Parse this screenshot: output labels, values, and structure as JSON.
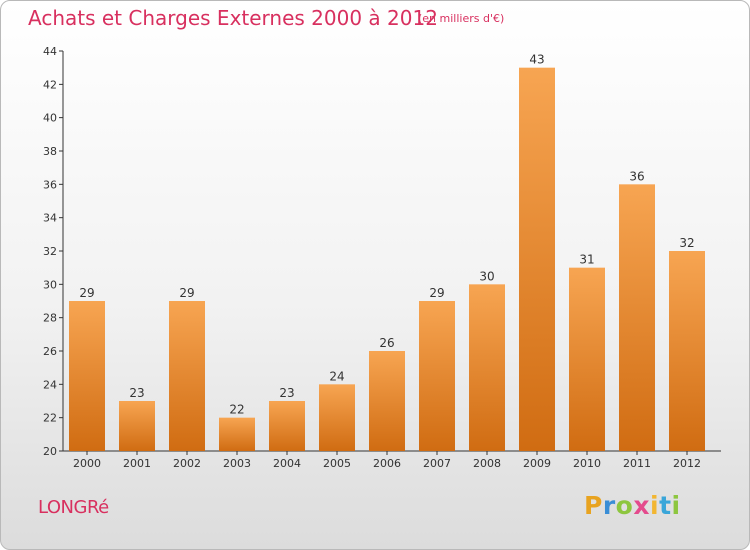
{
  "header": {
    "title": "Achats et Charges Externes 2000 à 2012",
    "subtitle": "(en milliers d'€)"
  },
  "footer": {
    "town": "LONGRé",
    "logo": {
      "letters": [
        "P",
        "r",
        "o",
        "x",
        "i",
        "t",
        "i"
      ],
      "colors": [
        "#e8a320",
        "#3a8ed6",
        "#8dc63f",
        "#e44b8d",
        "#f2b631",
        "#3aa6d9",
        "#8dc63f"
      ]
    }
  },
  "colors": {
    "bar_light": "#f7a552",
    "bar_dark": "#d06c12",
    "accent": "#d8305f"
  },
  "chart_data": {
    "type": "bar",
    "categories": [
      "2000",
      "2001",
      "2002",
      "2003",
      "2004",
      "2005",
      "2006",
      "2007",
      "2008",
      "2009",
      "2010",
      "2011",
      "2012"
    ],
    "values": [
      29,
      23,
      29,
      22,
      23,
      24,
      26,
      29,
      30,
      43,
      31,
      36,
      32
    ],
    "yticks": [
      20,
      22,
      24,
      26,
      28,
      30,
      32,
      34,
      36,
      38,
      40,
      42,
      44
    ],
    "ylim": [
      20,
      44
    ],
    "grid": false,
    "legend": "none"
  }
}
